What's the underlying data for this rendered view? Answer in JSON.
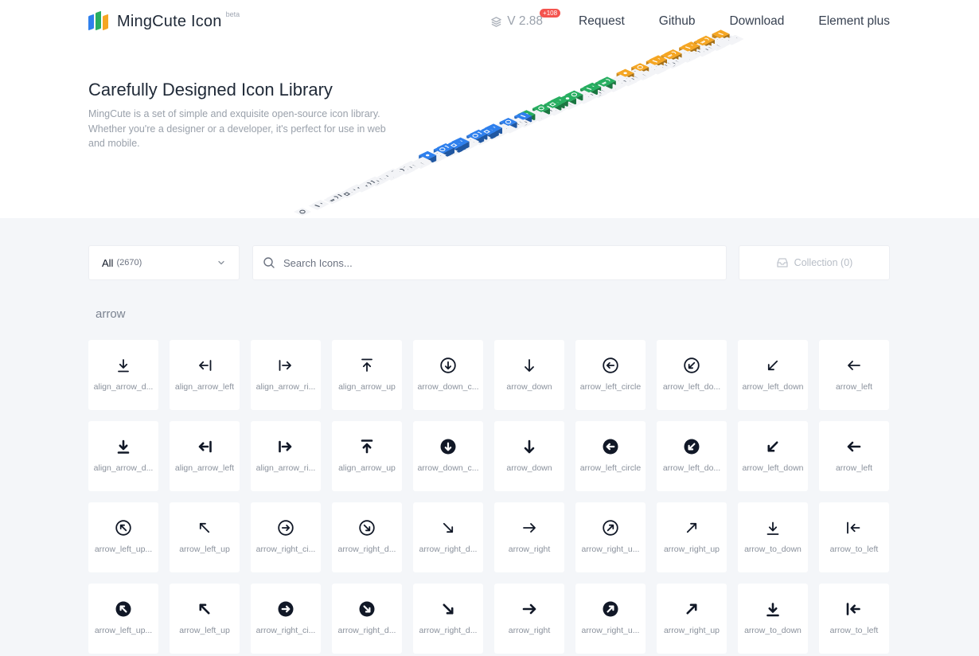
{
  "brand": {
    "title": "MingCute Icon",
    "beta": "beta",
    "colors": [
      "#2f80ed",
      "#27ae60",
      "#f5a623"
    ]
  },
  "nav": {
    "version": "V 2.88",
    "version_badge": "+108",
    "links": [
      "Request",
      "Github",
      "Download",
      "Element plus"
    ]
  },
  "hero": {
    "title": "Carefully Designed Icon Library",
    "description": "MingCute is a set of simple and exquisite open-source icon library. Whether you're a designer or a developer, it's perfect for use in web and mobile."
  },
  "filter": {
    "selected": "All",
    "count": "(2670)"
  },
  "search": {
    "placeholder": "Search Icons..."
  },
  "collection": {
    "label": "Collection (0)"
  },
  "section": {
    "label": "arrow"
  },
  "icons": [
    {
      "name": "align_arrow_d...",
      "icon": "align-arrow-down-line"
    },
    {
      "name": "align_arrow_left",
      "icon": "align-arrow-left-line"
    },
    {
      "name": "align_arrow_ri...",
      "icon": "align-arrow-right-line"
    },
    {
      "name": "align_arrow_up",
      "icon": "align-arrow-up-line"
    },
    {
      "name": "arrow_down_c...",
      "icon": "arrow-down-circle-line"
    },
    {
      "name": "arrow_down",
      "icon": "arrow-down-line"
    },
    {
      "name": "arrow_left_circle",
      "icon": "arrow-left-circle-line"
    },
    {
      "name": "arrow_left_do...",
      "icon": "arrow-left-down-circle-line"
    },
    {
      "name": "arrow_left_down",
      "icon": "arrow-left-down-line"
    },
    {
      "name": "arrow_left",
      "icon": "arrow-left-line"
    },
    {
      "name": "align_arrow_d...",
      "icon": "align-arrow-down-fill"
    },
    {
      "name": "align_arrow_left",
      "icon": "align-arrow-left-fill"
    },
    {
      "name": "align_arrow_ri...",
      "icon": "align-arrow-right-fill"
    },
    {
      "name": "align_arrow_up",
      "icon": "align-arrow-up-fill"
    },
    {
      "name": "arrow_down_c...",
      "icon": "arrow-down-circle-fill"
    },
    {
      "name": "arrow_down",
      "icon": "arrow-down-fill"
    },
    {
      "name": "arrow_left_circle",
      "icon": "arrow-left-circle-fill"
    },
    {
      "name": "arrow_left_do...",
      "icon": "arrow-left-down-circle-fill"
    },
    {
      "name": "arrow_left_down",
      "icon": "arrow-left-down-fill"
    },
    {
      "name": "arrow_left",
      "icon": "arrow-left-fill"
    },
    {
      "name": "arrow_left_up...",
      "icon": "arrow-left-up-circle-line"
    },
    {
      "name": "arrow_left_up",
      "icon": "arrow-left-up-line"
    },
    {
      "name": "arrow_right_ci...",
      "icon": "arrow-right-circle-line"
    },
    {
      "name": "arrow_right_d...",
      "icon": "arrow-right-down-circle-line"
    },
    {
      "name": "arrow_right_d...",
      "icon": "arrow-right-down-line"
    },
    {
      "name": "arrow_right",
      "icon": "arrow-right-line"
    },
    {
      "name": "arrow_right_u...",
      "icon": "arrow-right-up-circle-line"
    },
    {
      "name": "arrow_right_up",
      "icon": "arrow-right-up-line"
    },
    {
      "name": "arrow_to_down",
      "icon": "arrow-to-down-line"
    },
    {
      "name": "arrow_to_left",
      "icon": "arrow-to-left-line"
    },
    {
      "name": "arrow_left_up...",
      "icon": "arrow-left-up-circle-fill"
    },
    {
      "name": "arrow_left_up",
      "icon": "arrow-left-up-fill"
    },
    {
      "name": "arrow_right_ci...",
      "icon": "arrow-right-circle-fill"
    },
    {
      "name": "arrow_right_d...",
      "icon": "arrow-right-down-circle-fill"
    },
    {
      "name": "arrow_right_d...",
      "icon": "arrow-right-down-fill"
    },
    {
      "name": "arrow_right",
      "icon": "arrow-right-fill"
    },
    {
      "name": "arrow_right_u...",
      "icon": "arrow-right-up-circle-fill"
    },
    {
      "name": "arrow_right_up",
      "icon": "arrow-right-up-fill"
    },
    {
      "name": "arrow_to_down",
      "icon": "arrow-to-down-fill"
    },
    {
      "name": "arrow_to_left",
      "icon": "arrow-to-left-fill"
    }
  ]
}
